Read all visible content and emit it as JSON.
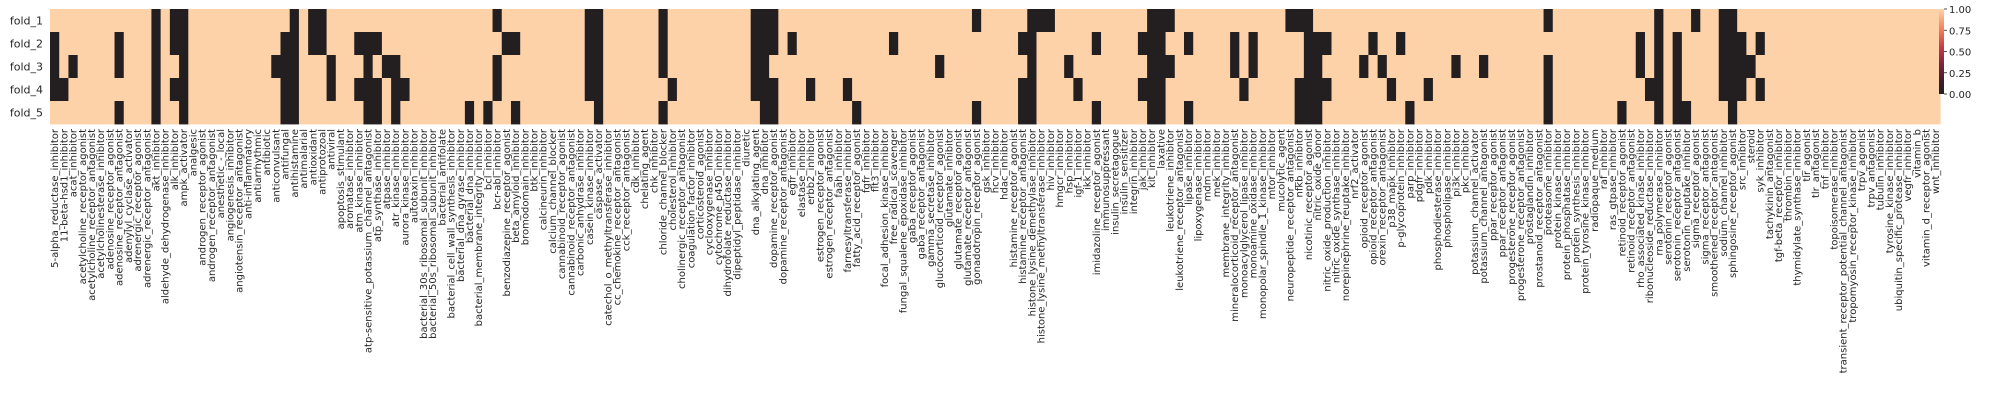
{
  "chart_data": {
    "type": "heatmap",
    "title": "",
    "xlabel": "",
    "ylabel": "",
    "rows": [
      "fold_1",
      "fold_2",
      "fold_3",
      "fold_4",
      "fold_5"
    ],
    "columns": [
      "5-alpha_reductase_inhibitor",
      "11-beta-hsd1_inhibitor",
      "acat_inhibitor",
      "acetylcholine_receptor_agonist",
      "acetylcholine_receptor_antagonist",
      "acetylcholinesterase_inhibitor",
      "adenosine_receptor_agonist",
      "adenosine_receptor_antagonist",
      "adenylyl_cyclase_activator",
      "adrenergic_receptor_agonist",
      "adrenergic_receptor_antagonist",
      "akt_inhibitor",
      "aldehyde_dehydrogenase_inhibitor",
      "alk_inhibitor",
      "ampk_activator",
      "analgesic",
      "androgen_receptor_agonist",
      "androgen_receptor_antagonist",
      "anesthetic_-_local",
      "angiogenesis_inhibitor",
      "angiotensin_receptor_antagonist",
      "anti-inflammatory",
      "antiarrhythmic",
      "antibiotic",
      "anticonvulsant",
      "antifungal",
      "antihistamine",
      "antimalarial",
      "antioxidant",
      "antiprotozoal",
      "antiviral",
      "apoptosis_stimulant",
      "aromatase_inhibitor",
      "atm_kinase_inhibitor",
      "atp-sensitive_potassium_channel_antagonist",
      "atp_synthase_inhibitor",
      "atpase_inhibitor",
      "atr_kinase_inhibitor",
      "aurora_kinase_inhibitor",
      "autotaxin_inhibitor",
      "bacterial_30s_ribosomal_subunit_inhibitor",
      "bacterial_50s_ribosomal_subunit_inhibitor",
      "bacterial_antifolate",
      "bacterial_cell_wall_synthesis_inhibitor",
      "bacterial_dna_gyrase_inhibitor",
      "bacterial_dna_inhibitor",
      "bacterial_membrane_integrity_inhibitor",
      "bcl_inhibitor",
      "bcr-abl_inhibitor",
      "benzodiazepine_receptor_agonist",
      "beta_amyloid_inhibitor",
      "bromodomain_inhibitor",
      "btk_inhibitor",
      "calcineurin_inhibitor",
      "calcium_channel_blocker",
      "cannabinoid_receptor_agonist",
      "cannabinoid_receptor_antagonist",
      "carbonic_anhydrase_inhibitor",
      "casein_kinase_inhibitor",
      "caspase_activator",
      "catechol_o_methyltransferase_inhibitor",
      "cc_chemokine_receptor_antagonist",
      "cck_receptor_antagonist",
      "cdk_inhibitor",
      "chelating_agent",
      "chk_inhibitor",
      "chloride_channel_blocker",
      "cholesterol_inhibitor",
      "cholinergic_receptor_antagonist",
      "coagulation_factor_inhibitor",
      "corticosteroid_agonist",
      "cyclooxygenase_inhibitor",
      "cytochrome_p450_inhibitor",
      "dihydrofolate_reductase_inhibitor",
      "dipeptidyl_peptidase_inhibitor",
      "diuretic",
      "dna_alkylating_agent",
      "dna_inhibitor",
      "dopamine_receptor_agonist",
      "dopamine_receptor_antagonist",
      "egfr_inhibitor",
      "elastase_inhibitor",
      "erbb2_inhibitor",
      "estrogen_receptor_agonist",
      "estrogen_receptor_antagonist",
      "faah_inhibitor",
      "farnesyltransferase_inhibitor",
      "fatty_acid_receptor_agonist",
      "fgfr_inhibitor",
      "flt3_inhibitor",
      "focal_adhesion_kinase_inhibitor",
      "free_radical_scavenger",
      "fungal_squalene_epoxidase_inhibitor",
      "gaba_receptor_agonist",
      "gaba_receptor_antagonist",
      "gamma_secretase_inhibitor",
      "glucocorticoid_receptor_agonist",
      "glutamate_inhibitor",
      "glutamate_receptor_agonist",
      "glutamate_receptor_antagonist",
      "gonadotropin_receptor_agonist",
      "gsk_inhibitor",
      "hcv_inhibitor",
      "hdac_inhibitor",
      "histamine_receptor_agonist",
      "histamine_receptor_antagonist",
      "histone_lysine_demethylase_inhibitor",
      "histone_lysine_methyltransferase_inhibitor",
      "hiv_inhibitor",
      "hmgcr_inhibitor",
      "hsp_inhibitor",
      "igf-1_inhibitor",
      "ikk_inhibitor",
      "imidazoline_receptor_agonist",
      "immunosuppressant",
      "insulin_secretagogue",
      "insulin_sensitizer",
      "integrin_inhibitor",
      "jak_inhibitor",
      "kit_inhibitor",
      "laxative",
      "leukotriene_inhibitor",
      "leukotriene_receptor_antagonist",
      "lipase_inhibitor",
      "lipoxygenase_inhibitor",
      "mdm_inhibitor",
      "mek_inhibitor",
      "membrane_integrity_inhibitor",
      "mineralocorticoid_receptor_antagonist",
      "monoacylglycerol_lipase_inhibitor",
      "monoamine_oxidase_inhibitor",
      "monopolar_spindle_1_kinase_inhibitor",
      "mtor_inhibitor",
      "mucolytic_agent",
      "neuropeptide_receptor_antagonist",
      "nfkb_inhibitor",
      "nicotinic_receptor_agonist",
      "nitric_oxide_donor",
      "nitric_oxide_production_inhibitor",
      "nitric_oxide_synthase_inhibitor",
      "norepinephrine_reuptake_inhibitor",
      "nrf2_activator",
      "opioid_receptor_agonist",
      "opioid_receptor_antagonist",
      "orexin_receptor_antagonist",
      "p38_mapk_inhibitor",
      "p-glycoprotein_inhibitor",
      "parp_inhibitor",
      "pdgfr_inhibitor",
      "pdk_inhibitor",
      "phosphodiesterase_inhibitor",
      "phospholipase_inhibitor",
      "pi3k_inhibitor",
      "pkc_inhibitor",
      "potassium_channel_activator",
      "potassium_channel_antagonist",
      "ppar_receptor_agonist",
      "ppar_receptor_antagonist",
      "progesterone_receptor_agonist",
      "progesterone_receptor_antagonist",
      "prostaglandin_inhibitor",
      "prostanoid_receptor_antagonist",
      "proteasome_inhibitor",
      "protein_kinase_inhibitor",
      "protein_phosphatase_inhibitor",
      "protein_synthesis_inhibitor",
      "protein_tyrosine_kinase_inhibitor",
      "radiopaque_medium",
      "raf_inhibitor",
      "ras_gtpase_inhibitor",
      "retinoid_receptor_agonist",
      "retinoid_receptor_antagonist",
      "rho_associated_kinase_inhibitor",
      "ribonucleoside_reductase_inhibitor",
      "rna_polymerase_inhibitor",
      "serotonin_receptor_agonist",
      "serotonin_receptor_antagonist",
      "serotonin_reuptake_inhibitor",
      "sigma_receptor_agonist",
      "sigma_receptor_antagonist",
      "smoothened_receptor_antagonist",
      "sodium_channel_inhibitor",
      "sphingosine_receptor_agonist",
      "src_inhibitor",
      "steroid",
      "syk_inhibitor",
      "tachykinin_antagonist",
      "tgf-beta_receptor_inhibitor",
      "thrombin_inhibitor",
      "thymidylate_synthase_inhibitor",
      "tlr_agonist",
      "tlr_antagonist",
      "tnf_inhibitor",
      "topoisomerase_inhibitor",
      "transient_receptor_potential_channel_antagonist",
      "tropomyosin_receptor_kinase_inhibitor",
      "trpv_agonist",
      "trpv_antagonist",
      "tubulin_inhibitor",
      "tyrosine_kinase_inhibitor",
      "ubiquitin_specific_protease_inhibitor",
      "vegfr_inhibitor",
      "vitamin_b",
      "vitamin_d_receptor_agonist",
      "wnt_inhibitor"
    ],
    "zero_cells": {
      "fold_1": [
        11,
        13,
        14,
        26,
        28,
        29,
        48,
        58,
        59,
        66,
        76,
        77,
        78,
        100,
        106,
        107,
        108,
        119,
        120,
        121,
        134,
        135,
        136,
        162,
        174,
        178,
        181,
        182
      ],
      "fold_2": [
        0,
        7,
        11,
        13,
        14,
        25,
        26,
        28,
        29,
        33,
        34,
        35,
        49,
        50,
        58,
        59,
        66,
        76,
        77,
        78,
        80,
        91,
        105,
        106,
        113,
        118,
        119,
        120,
        123,
        128,
        130,
        136,
        137,
        138,
        143,
        146,
        172,
        174,
        176,
        181,
        182,
        183,
        185
      ],
      "fold_3": [
        0,
        2,
        7,
        11,
        14,
        24,
        25,
        26,
        30,
        34,
        36,
        37,
        48,
        58,
        59,
        66,
        76,
        77,
        96,
        106,
        110,
        119,
        120,
        121,
        128,
        130,
        136,
        137,
        142,
        144,
        152,
        155,
        162,
        172,
        174,
        176,
        181,
        182,
        183,
        184
      ],
      "fold_4": [
        0,
        1,
        11,
        13,
        14,
        25,
        26,
        30,
        33,
        34,
        35,
        37,
        38,
        48,
        58,
        59,
        67,
        76,
        77,
        78,
        82,
        86,
        105,
        106,
        111,
        118,
        119,
        120,
        129,
        135,
        136,
        137,
        138,
        145,
        149,
        162,
        173,
        174,
        176,
        181,
        182,
        183,
        185
      ],
      "fold_5": [
        7,
        11,
        14,
        25,
        26,
        34,
        35,
        37,
        45,
        47,
        50,
        59,
        66,
        77,
        78,
        87,
        100,
        105,
        106,
        113,
        119,
        120,
        123,
        135,
        136,
        137,
        147,
        162,
        170,
        174,
        176,
        177,
        182
      ]
    },
    "default_value": 1,
    "colorbar": {
      "ticks": [
        "0.00",
        "0.25",
        "0.50",
        "0.75",
        "1.00"
      ],
      "range": [
        0,
        1
      ],
      "low_color": "#231f20",
      "mid_color": "#c43b4d",
      "high_color": "#fdd2a9"
    }
  }
}
